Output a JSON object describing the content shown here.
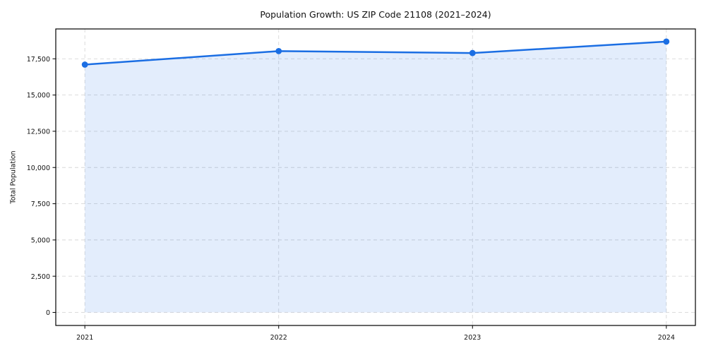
{
  "figure": {
    "background": "#ffffff"
  },
  "chart_data": {
    "type": "line",
    "title": "Population Growth: US ZIP Code 21108 (2021–2024)",
    "xlabel": "",
    "ylabel": "Total Population",
    "x": [
      "2021",
      "2022",
      "2023",
      "2024"
    ],
    "series": [
      {
        "name": "Total Population",
        "values": [
          17100,
          18030,
          17900,
          18690
        ]
      }
    ],
    "y_ticks": [
      0,
      2500,
      5000,
      7500,
      10000,
      12500,
      15000,
      17500
    ],
    "y_tick_labels": [
      "0",
      "2,500",
      "5,000",
      "7,500",
      "10,000",
      "12,500",
      "15,000",
      "17,500"
    ],
    "ylim": [
      -900,
      19560
    ],
    "area_fill_to_baseline": 0,
    "grid": "dashed-both-axes",
    "legend": "none",
    "colors": {
      "line": "#1b6ee3",
      "marker": "#1b6ee3",
      "area_fill": "rgba(27,110,227,0.12)",
      "grid": "#d7d7d7",
      "spine": "#000000",
      "text": "#111111",
      "plot_background": "#ffffff"
    }
  }
}
